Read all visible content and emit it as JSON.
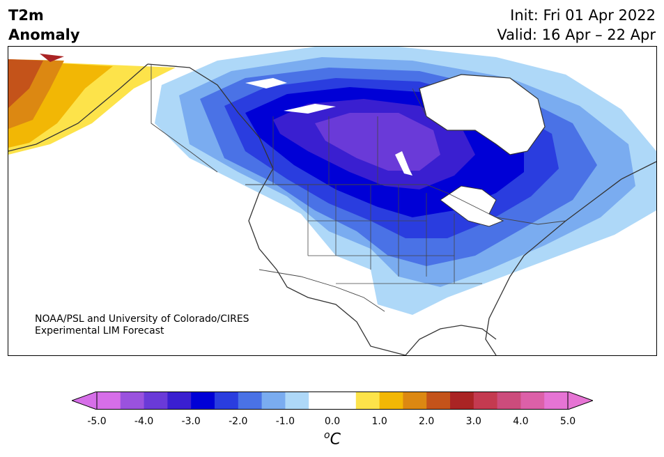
{
  "header": {
    "title_line1": "T2m",
    "title_line2": "Anomaly",
    "init": "Init: Fri 01 Apr 2022",
    "valid": "Valid: 16 Apr – 22 Apr"
  },
  "credit": {
    "line1": "NOAA/PSL and University of Colorado/CIRES",
    "line2": "Experimental LIM Forecast"
  },
  "colorbar": {
    "unit_base": "C",
    "unit_sup": "o",
    "tick_labels": [
      "-5.0",
      "-4.0",
      "-3.0",
      "-2.0",
      "-1.0",
      "0.0",
      "1.0",
      "2.0",
      "3.0",
      "4.0",
      "5.0"
    ],
    "bins": [
      {
        "range": "-5.0 to -4.5",
        "color": "#d66ee8"
      },
      {
        "range": "-4.5 to -4.0",
        "color": "#9a52de"
      },
      {
        "range": "-4.0 to -3.5",
        "color": "#6a3ad8"
      },
      {
        "range": "-3.5 to -3.0",
        "color": "#3a1fd0"
      },
      {
        "range": "-3.0 to -2.5",
        "color": "#0000d6"
      },
      {
        "range": "-2.5 to -2.0",
        "color": "#2a3ddf"
      },
      {
        "range": "-2.0 to -1.5",
        "color": "#4a72e6"
      },
      {
        "range": "-1.5 to -1.0",
        "color": "#7aacf0"
      },
      {
        "range": "-1.0 to -0.5",
        "color": "#aed8f8"
      },
      {
        "range": "-0.5 to 0.5",
        "color": "#ffffff"
      },
      {
        "range": "0.5 to 1.0",
        "color": "#fde34a"
      },
      {
        "range": "1.0 to 1.5",
        "color": "#f2b705"
      },
      {
        "range": "1.5 to 2.0",
        "color": "#dc8812"
      },
      {
        "range": "2.0 to 2.5",
        "color": "#c4531a"
      },
      {
        "range": "2.5 to 3.0",
        "color": "#aa2424"
      },
      {
        "range": "3.0 to 3.5",
        "color": "#c43a50"
      },
      {
        "range": "3.5 to 4.0",
        "color": "#cc4c7c"
      },
      {
        "range": "4.0 to 4.5",
        "color": "#dc60a8"
      },
      {
        "range": "4.5 to 5.0",
        "color": "#e674d4"
      }
    ],
    "under_color": "#d66ee8",
    "over_color": "#e674d4"
  },
  "map": {
    "region": "North America",
    "features": [
      "anomaly-contours",
      "coastlines",
      "country-borders",
      "state-borders"
    ]
  }
}
